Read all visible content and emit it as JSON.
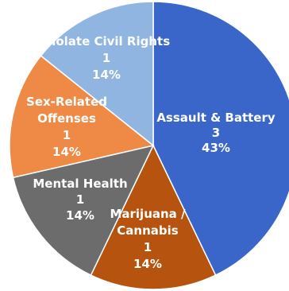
{
  "chart_data": {
    "type": "pie",
    "title": "",
    "start_angle_deg": 0,
    "direction": "clockwise",
    "slices": [
      {
        "label": "Assault & Battery",
        "count": "3",
        "percent": "43%",
        "value": 3,
        "color": "#3A66C9"
      },
      {
        "label": "Marijuana /\nCannabis",
        "count": "1",
        "percent": "14%",
        "value": 1,
        "color": "#B5530F"
      },
      {
        "label": "Mental Health",
        "count": "1",
        "percent": "14%",
        "value": 1,
        "color": "#6C6C6C"
      },
      {
        "label": "Sex-Related\nOffenses",
        "count": "1",
        "percent": "14%",
        "value": 1,
        "color": "#EE8A45"
      },
      {
        "label": "Violate Civil Rights",
        "count": "1",
        "percent": "14%",
        "value": 1,
        "color": "#8FB5E0"
      }
    ]
  }
}
